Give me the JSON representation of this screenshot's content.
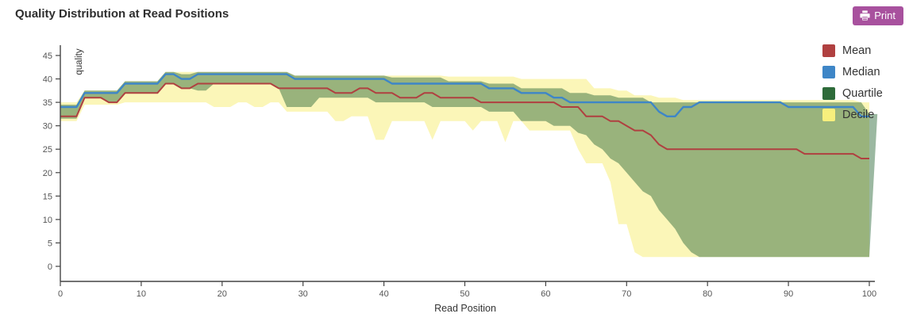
{
  "header": {
    "title": "Quality Distribution at Read Positions",
    "print_label": "Print",
    "print_button_color": "#a8519e"
  },
  "chart_data": {
    "type": "line",
    "title": "Quality Distribution at Read Positions",
    "xlabel": "Read Position",
    "ylabel": "quality",
    "xlim": [
      0,
      100
    ],
    "ylim": [
      0,
      45
    ],
    "x_ticks": [
      0,
      10,
      20,
      30,
      40,
      50,
      60,
      70,
      80,
      90,
      100
    ],
    "y_ticks": [
      0,
      5,
      10,
      15,
      20,
      25,
      30,
      35,
      40,
      45
    ],
    "grid": false,
    "legend_position": "top-right",
    "legend": [
      {
        "name": "Mean",
        "color": "#b04040",
        "kind": "line"
      },
      {
        "name": "Median",
        "color": "#3e86c7",
        "kind": "line"
      },
      {
        "name": "Quartile",
        "color": "#2e6b3a",
        "kind": "band"
      },
      {
        "name": "Decile",
        "color": "#f7ef7d",
        "kind": "band"
      }
    ],
    "x_step": 1,
    "series": {
      "mean": [
        32,
        32,
        32,
        36,
        36,
        36,
        35,
        35,
        37,
        37,
        37,
        37,
        37,
        39,
        39,
        38,
        38,
        39,
        39,
        39,
        39,
        39,
        39,
        39,
        39,
        39,
        39,
        38,
        38,
        38,
        38,
        38,
        38,
        38,
        37,
        37,
        37,
        38,
        38,
        37,
        37,
        37,
        36,
        36,
        36,
        37,
        37,
        36,
        36,
        36,
        36,
        36,
        35,
        35,
        35,
        35,
        35,
        35,
        35,
        35,
        35,
        35,
        34,
        34,
        34,
        32,
        32,
        32,
        31,
        31,
        30,
        29,
        29,
        28,
        26,
        25,
        25,
        25,
        25,
        25,
        25,
        25,
        25,
        25,
        25,
        25,
        25,
        25,
        25,
        25,
        25,
        25,
        24,
        24,
        24,
        24,
        24,
        24,
        24,
        23,
        23
      ],
      "median": [
        34,
        34,
        34,
        37,
        37,
        37,
        37,
        37,
        39,
        39,
        39,
        39,
        39,
        41,
        41,
        40,
        40,
        41,
        41,
        41,
        41,
        41,
        41,
        41,
        41,
        41,
        41,
        41,
        41,
        40,
        40,
        40,
        40,
        40,
        40,
        40,
        40,
        40,
        40,
        40,
        40,
        39,
        39,
        39,
        39,
        39,
        39,
        39,
        39,
        39,
        39,
        39,
        39,
        38,
        38,
        38,
        38,
        37,
        37,
        37,
        37,
        36,
        36,
        35,
        35,
        35,
        35,
        35,
        35,
        35,
        35,
        35,
        35,
        35,
        33,
        32,
        32,
        34,
        34,
        35,
        35,
        35,
        35,
        35,
        35,
        35,
        35,
        35,
        35,
        35,
        34,
        34,
        34,
        34,
        34,
        34,
        34,
        34,
        34,
        32,
        32
      ],
      "quartile_upper": [
        34.5,
        34.5,
        34.5,
        37.5,
        37.5,
        37.5,
        37.5,
        37.5,
        39.5,
        39.5,
        39.5,
        39.5,
        39.5,
        41.5,
        41.5,
        41,
        41,
        41.5,
        41.5,
        41.5,
        41.5,
        41.5,
        41.5,
        41.5,
        41.5,
        41.5,
        41.5,
        41.5,
        41.5,
        40.7,
        40.7,
        40.7,
        40.7,
        40.7,
        40.7,
        40.7,
        40.7,
        40.7,
        40.7,
        40.7,
        40.7,
        40.3,
        40.3,
        40.3,
        40.3,
        40.3,
        40.3,
        40.3,
        39.5,
        39.5,
        39.5,
        39.5,
        39.5,
        39,
        39,
        39,
        39,
        38,
        38,
        38,
        38,
        38,
        38,
        37,
        37,
        37,
        36.5,
        36.5,
        36.5,
        36,
        36,
        36,
        36,
        35,
        35,
        35,
        35,
        35,
        35,
        35,
        35,
        35,
        35,
        35,
        35,
        35,
        35,
        35,
        35,
        35,
        35,
        35,
        35,
        35,
        35,
        35,
        35,
        35,
        35,
        35,
        32.5,
        32.5
      ],
      "quartile_lower": [
        31.5,
        31.5,
        31.5,
        36,
        36,
        36,
        35,
        35,
        37,
        37,
        37,
        37,
        37,
        39,
        39,
        38,
        38,
        37.5,
        37.5,
        39,
        39,
        39,
        39,
        39,
        39,
        39,
        39,
        38,
        34,
        34,
        34,
        34,
        36,
        36,
        36,
        36,
        36,
        36,
        36,
        35,
        35,
        35,
        35,
        35,
        35,
        35,
        34,
        34,
        34,
        34,
        34,
        34,
        34,
        33,
        33,
        33,
        33,
        31,
        31,
        31,
        31,
        30,
        30,
        30,
        28.5,
        28,
        26,
        25,
        23,
        22,
        20,
        18,
        16,
        15,
        12,
        10,
        8,
        5,
        3,
        2,
        2,
        2,
        2,
        2,
        2,
        2,
        2,
        2,
        2,
        2,
        2,
        2,
        2,
        2,
        2,
        2,
        2,
        2,
        2,
        2,
        2
      ],
      "decile_upper": [
        35,
        35,
        35,
        37.5,
        37.5,
        37.5,
        37.5,
        37.5,
        39.5,
        39.5,
        39.5,
        39.5,
        39.5,
        41.5,
        41.5,
        41.5,
        41.5,
        41.5,
        41.5,
        41.5,
        41.5,
        41.5,
        41.5,
        41.5,
        41.5,
        41.5,
        41.5,
        41.5,
        41.5,
        40.7,
        40.7,
        40.7,
        40.7,
        40.7,
        40.7,
        40.7,
        40.7,
        40.7,
        40.7,
        40.7,
        40.7,
        40.7,
        40.7,
        40.7,
        40.7,
        40.7,
        40.7,
        40.7,
        40.5,
        40.5,
        40.5,
        40.5,
        40.5,
        40.5,
        40.5,
        40.5,
        40.5,
        40,
        40,
        40,
        40,
        40,
        40,
        40,
        40,
        40,
        38,
        38,
        38,
        37.5,
        37.5,
        36.5,
        36.5,
        36.5,
        36,
        36,
        36,
        35.5,
        35.5,
        35.5,
        35.5,
        35.5,
        35.5,
        35.5,
        35.5,
        35.5,
        35.5,
        35.5,
        35.5,
        35.5,
        35.5,
        35.5,
        35.5,
        35.5,
        35.5,
        35.5,
        35.5,
        35.5,
        35.5,
        35,
        35
      ],
      "decile_lower": [
        31,
        31,
        31,
        34.5,
        34.5,
        34.5,
        34.5,
        34.5,
        35,
        35,
        35,
        35,
        35,
        35,
        35,
        35,
        35,
        35,
        35,
        34,
        34,
        34,
        35,
        35,
        34,
        34,
        35,
        35,
        33,
        33,
        33,
        33,
        33,
        33,
        31,
        31,
        32,
        32,
        32,
        27,
        27,
        31,
        31,
        31,
        31,
        31,
        27,
        31,
        31,
        31,
        31,
        29,
        31,
        31,
        31,
        26.5,
        31,
        31,
        29,
        29,
        29,
        29,
        29,
        29,
        25,
        22,
        22,
        22,
        18,
        9,
        9,
        3,
        2,
        2,
        2,
        2,
        2,
        2,
        2,
        2,
        2,
        2,
        2,
        2,
        2,
        2,
        2,
        2,
        2,
        2,
        2,
        2,
        2,
        2,
        2,
        2,
        2,
        2,
        2,
        2,
        2
      ]
    },
    "colors": {
      "mean_line": "#b04040",
      "median_line": "#3e86c7",
      "quartile_fill_rgba": "rgba(46,107,58,0.48)",
      "decile_fill_rgba": "rgba(247,239,125,0.55)",
      "axis": "#444444",
      "tick_label": "#555555"
    }
  }
}
